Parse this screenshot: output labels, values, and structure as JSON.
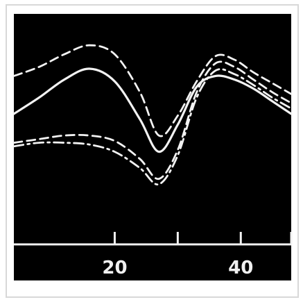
{
  "chart_data": {
    "type": "line",
    "title": "",
    "xlabel": "",
    "ylabel": "",
    "xlim": [
      4,
      48
    ],
    "ylim": [
      0,
      100
    ],
    "xticks": [
      20,
      30,
      40,
      48
    ],
    "xtick_labels": [
      "20",
      "40"
    ],
    "grid": false,
    "legend": "none",
    "background_color": "#000000",
    "line_color": "#f2f2f2",
    "series": [
      {
        "style": "dashed",
        "x": [
          4,
          8,
          12,
          16,
          20,
          24,
          27,
          30,
          33,
          36,
          39,
          42,
          45,
          48
        ],
        "y": [
          81,
          86,
          93,
          98,
          93,
          72,
          48,
          59,
          78,
          92,
          90,
          83,
          77,
          71
        ]
      },
      {
        "style": "solid",
        "x": [
          4,
          8,
          12,
          16,
          20,
          24,
          27,
          30,
          33,
          36,
          39,
          42,
          45,
          48
        ],
        "y": [
          60,
          69,
          79,
          85,
          78,
          57,
          39,
          54,
          75,
          81,
          79,
          74,
          67,
          60
        ]
      },
      {
        "style": "dashed",
        "x": [
          4,
          8,
          12,
          16,
          20,
          24,
          27,
          30,
          33,
          36,
          39,
          42,
          45,
          48
        ],
        "y": [
          44,
          46,
          48,
          48,
          45,
          35,
          24,
          40,
          72,
          88,
          86,
          79,
          72,
          66
        ]
      },
      {
        "style": "dash-dot",
        "x": [
          4,
          8,
          12,
          16,
          20,
          24,
          27,
          30,
          33,
          36,
          39,
          42,
          45,
          48
        ],
        "y": [
          42,
          44,
          44,
          43,
          39,
          30,
          21,
          37,
          69,
          84,
          82,
          76,
          69,
          63
        ]
      }
    ]
  }
}
